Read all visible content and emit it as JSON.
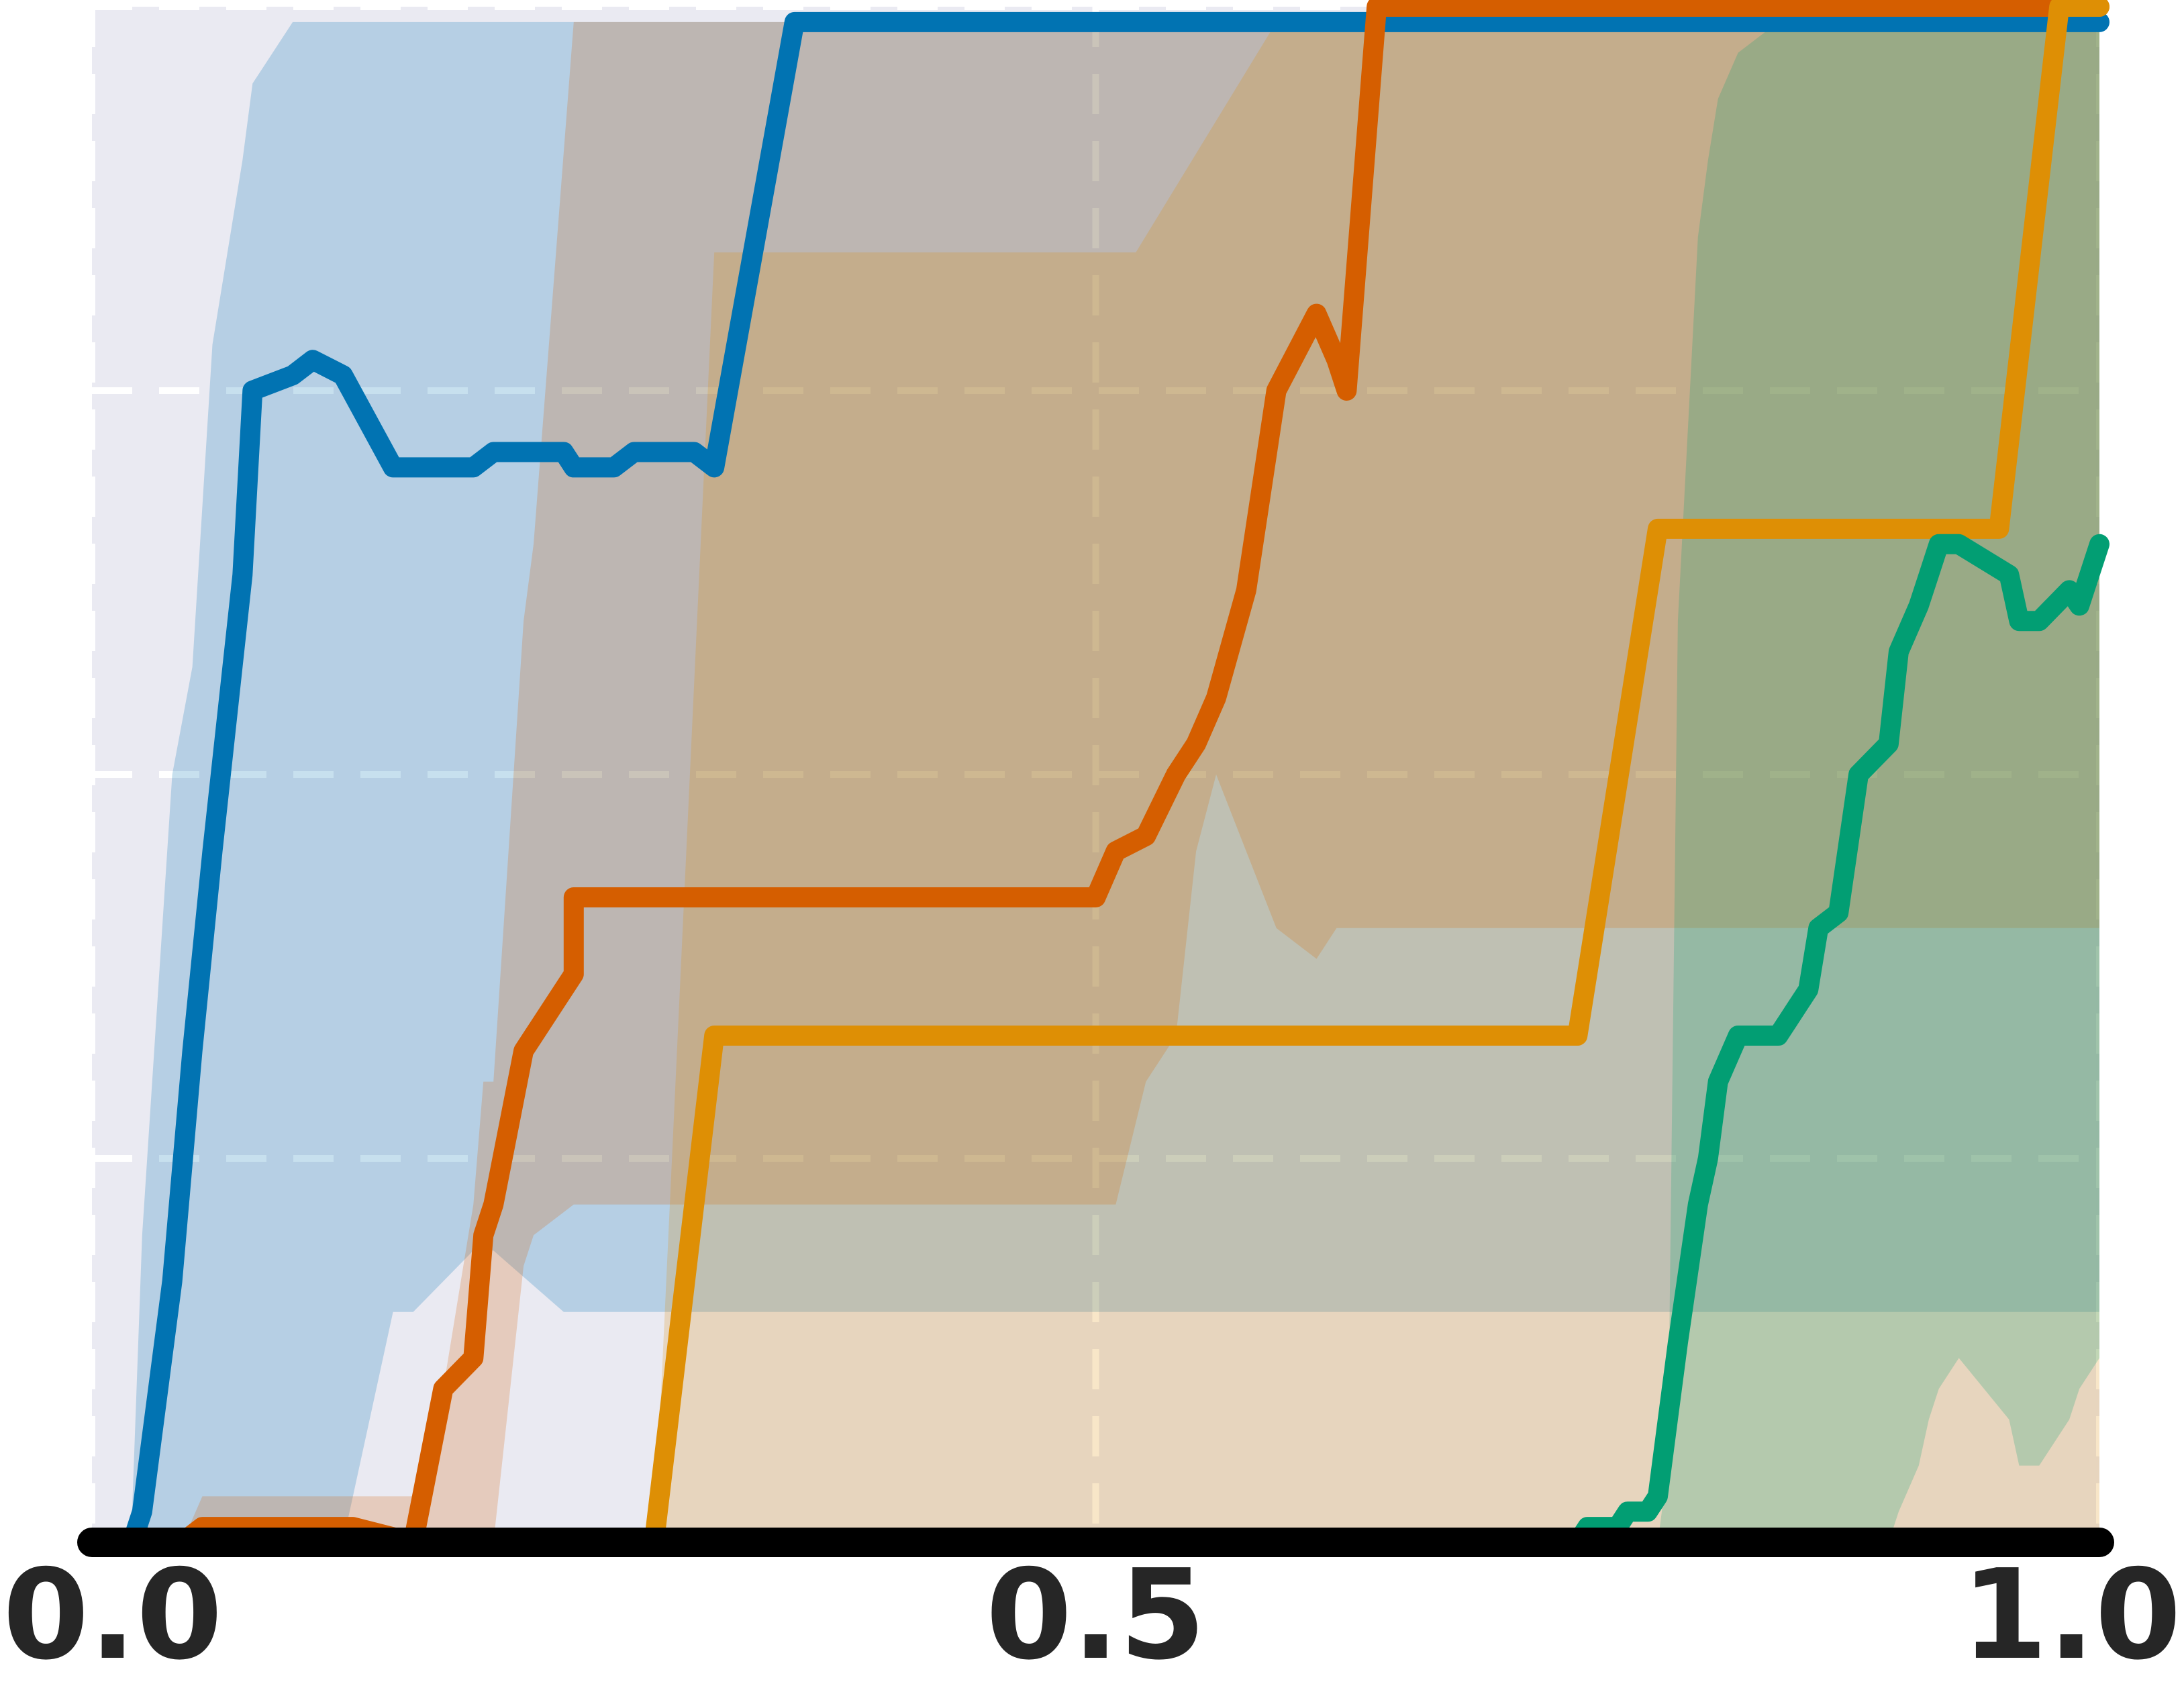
{
  "chart_data": {
    "type": "line",
    "title": "",
    "xlabel": "",
    "ylabel": "",
    "xlim": [
      0.0,
      1.0
    ],
    "ylim": [
      0.0,
      1.0
    ],
    "xticks": [
      0.0,
      0.5,
      1.0
    ],
    "xtick_labels": [
      "0.0",
      "0.5",
      "1.0"
    ],
    "yticks": [
      0.25,
      0.5,
      0.75,
      1.0
    ],
    "grid": true,
    "legend": "none",
    "background": "#eaeaf2",
    "series": [
      {
        "color": "#0173b2",
        "x": [
          0.02,
          0.025,
          0.04,
          0.05,
          0.06,
          0.075,
          0.08,
          0.1,
          0.11,
          0.125,
          0.15,
          0.16,
          0.19,
          0.2,
          0.235,
          0.24,
          0.26,
          0.27,
          0.3,
          0.31,
          0.35,
          0.36,
          0.6,
          0.7,
          1.0
        ],
        "y": [
          0.0,
          0.02,
          0.17,
          0.32,
          0.45,
          0.63,
          0.75,
          0.76,
          0.77,
          0.76,
          0.7,
          0.7,
          0.7,
          0.71,
          0.71,
          0.7,
          0.7,
          0.71,
          0.71,
          0.7,
          0.99,
          0.99,
          0.99,
          0.99,
          0.99
        ],
        "band_lower": [
          0.0,
          0.0,
          0.0,
          0.0,
          0.0,
          0.0,
          0.0,
          0.0,
          0.0,
          0.0,
          0.15,
          0.15,
          0.19,
          0.19,
          0.15,
          0.15,
          0.15,
          0.15,
          0.15,
          0.15,
          0.15,
          0.15,
          0.15,
          0.15,
          0.15
        ],
        "band_upper": [
          0.02,
          0.2,
          0.5,
          0.57,
          0.78,
          0.9,
          0.95,
          0.99,
          0.99,
          0.99,
          0.99,
          0.99,
          0.99,
          0.99,
          0.99,
          0.99,
          0.99,
          0.99,
          0.99,
          0.99,
          0.99,
          0.99,
          0.99,
          0.99,
          0.99
        ]
      },
      {
        "color": "#d55e00",
        "x": [
          0.045,
          0.055,
          0.13,
          0.16,
          0.175,
          0.19,
          0.195,
          0.2,
          0.215,
          0.22,
          0.24,
          0.24,
          0.25,
          0.48,
          0.5,
          0.51,
          0.525,
          0.54,
          0.55,
          0.56,
          0.575,
          0.59,
          0.61,
          0.62,
          0.625,
          0.64,
          1.0
        ],
        "y": [
          0.0,
          0.01,
          0.01,
          0.0,
          0.1,
          0.12,
          0.2,
          0.22,
          0.32,
          0.33,
          0.37,
          0.42,
          0.42,
          0.42,
          0.42,
          0.45,
          0.46,
          0.5,
          0.52,
          0.55,
          0.62,
          0.75,
          0.8,
          0.77,
          0.75,
          1.0,
          1.0
        ],
        "band_lower": [
          0.0,
          0.0,
          0.0,
          0.0,
          0.0,
          0.0,
          0.0,
          0.0,
          0.18,
          0.2,
          0.22,
          0.22,
          0.22,
          0.22,
          0.22,
          0.22,
          0.3,
          0.33,
          0.45,
          0.5,
          0.45,
          0.4,
          0.38,
          0.4,
          0.4,
          0.4,
          0.4
        ],
        "band_upper": [
          0.0,
          0.03,
          0.03,
          0.03,
          0.1,
          0.22,
          0.3,
          0.3,
          0.6,
          0.65,
          0.99,
          0.99,
          0.99,
          0.99,
          0.99,
          0.99,
          0.99,
          0.99,
          0.99,
          0.99,
          0.99,
          0.99,
          0.99,
          0.99,
          0.99,
          0.99,
          0.99
        ]
      },
      {
        "color": "#de8f05",
        "x": [
          0.28,
          0.31,
          0.52,
          0.59,
          0.6,
          0.74,
          0.78,
          0.85,
          0.86,
          0.87,
          0.9,
          0.95,
          0.98,
          1.0
        ],
        "y": [
          0.0,
          0.33,
          0.33,
          0.33,
          0.33,
          0.33,
          0.66,
          0.66,
          0.66,
          0.66,
          0.66,
          0.66,
          1.0,
          1.0
        ],
        "band_lower": [
          0.0,
          0.0,
          0.0,
          0.0,
          0.0,
          0.0,
          0.0,
          0.0,
          0.0,
          0.0,
          0.0,
          0.0,
          0.0,
          0.0
        ],
        "band_upper": [
          0.0,
          0.84,
          0.84,
          0.99,
          0.99,
          0.99,
          0.99,
          0.99,
          0.99,
          0.99,
          0.99,
          0.99,
          0.99,
          0.99
        ]
      },
      {
        "color": "#029e73",
        "x": [
          0.0,
          0.74,
          0.745,
          0.76,
          0.765,
          0.775,
          0.78,
          0.785,
          0.79,
          0.8,
          0.805,
          0.81,
          0.82,
          0.84,
          0.845,
          0.85,
          0.855,
          0.86,
          0.87,
          0.88,
          0.895,
          0.9,
          0.91,
          0.915,
          0.92,
          0.93,
          0.955,
          0.96,
          0.97,
          0.985,
          0.99,
          1.0
        ],
        "y": [
          0.0,
          0.0,
          0.01,
          0.01,
          0.02,
          0.02,
          0.03,
          0.08,
          0.13,
          0.22,
          0.25,
          0.3,
          0.33,
          0.33,
          0.34,
          0.35,
          0.36,
          0.4,
          0.41,
          0.5,
          0.52,
          0.58,
          0.61,
          0.63,
          0.65,
          0.65,
          0.63,
          0.6,
          0.6,
          0.62,
          0.61,
          0.65
        ],
        "band_lower": [
          0.0,
          0.0,
          0.0,
          0.0,
          0.0,
          0.0,
          0.0,
          0.0,
          0.0,
          0.0,
          0.0,
          0.0,
          0.0,
          0.0,
          0.0,
          0.0,
          0.0,
          0.0,
          0.0,
          0.0,
          0.0,
          0.02,
          0.05,
          0.08,
          0.1,
          0.12,
          0.08,
          0.05,
          0.05,
          0.08,
          0.1,
          0.12
        ],
        "band_upper": [
          0.0,
          0.0,
          0.0,
          0.0,
          0.0,
          0.0,
          0.0,
          0.05,
          0.6,
          0.85,
          0.9,
          0.94,
          0.97,
          0.99,
          0.99,
          0.99,
          0.99,
          0.99,
          0.99,
          0.99,
          0.99,
          0.99,
          0.99,
          0.99,
          0.99,
          0.99,
          0.99,
          0.99,
          0.99,
          0.99,
          0.99,
          0.99
        ]
      },
      {
        "color": "#000000",
        "x": [
          0.0,
          1.0
        ],
        "y": [
          0.0,
          0.0
        ]
      }
    ]
  }
}
